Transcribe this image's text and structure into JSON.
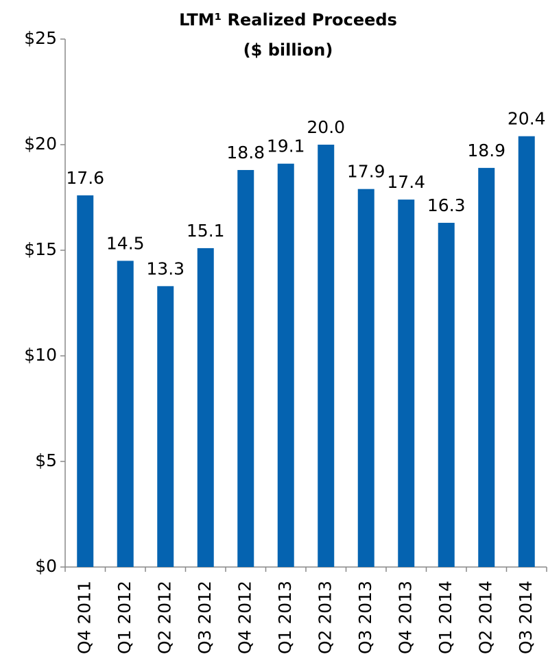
{
  "chart_data": {
    "type": "bar",
    "title": "LTM¹ Realized Proceeds",
    "subtitle": "($ billion)",
    "categories": [
      "Q4 2011",
      "Q1 2012",
      "Q2 2012",
      "Q3 2012",
      "Q4 2012",
      "Q1 2013",
      "Q2 2013",
      "Q3 2013",
      "Q4 2013",
      "Q1 2014",
      "Q2 2014",
      "Q3 2014"
    ],
    "values": [
      17.6,
      14.5,
      13.3,
      15.1,
      18.8,
      19.1,
      20.0,
      17.9,
      17.4,
      16.3,
      18.9,
      20.4
    ],
    "value_labels": [
      "17.6",
      "14.5",
      "13.3",
      "15.1",
      "18.8",
      "19.1",
      "20.0",
      "17.9",
      "17.4",
      "16.3",
      "18.9",
      "20.4"
    ],
    "color": "#0563b0",
    "ylim": [
      0,
      25
    ],
    "yticks": [
      {
        "value": 0,
        "label": "$0"
      },
      {
        "value": 5,
        "label": "$5"
      },
      {
        "value": 10,
        "label": "$10"
      },
      {
        "value": 15,
        "label": "$15"
      },
      {
        "value": 20,
        "label": "$20"
      },
      {
        "value": 25,
        "label": "$25"
      }
    ],
    "grid": false
  }
}
